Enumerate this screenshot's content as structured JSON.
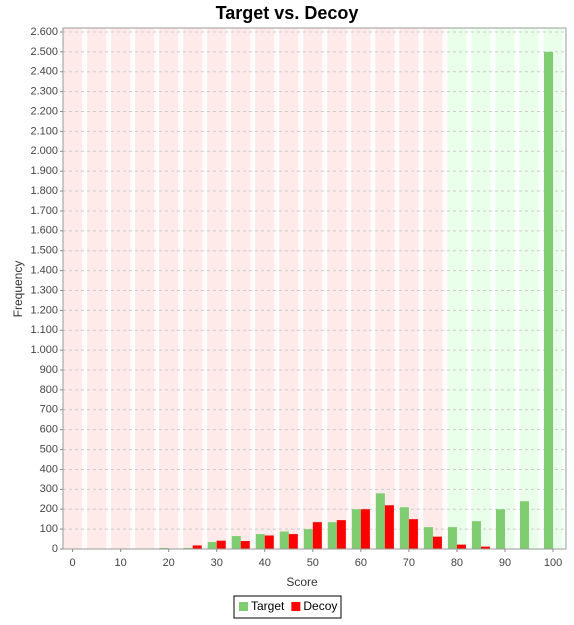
{
  "chart_data": {
    "type": "bar",
    "title": "Target vs. Decoy",
    "x_label": "Score",
    "y_label": "Frequency",
    "x": [
      0,
      5,
      10,
      15,
      20,
      25,
      30,
      35,
      40,
      45,
      50,
      55,
      60,
      65,
      70,
      75,
      80,
      85,
      90,
      95,
      100
    ],
    "series": [
      {
        "name": "Target",
        "color": "#80cc70",
        "values": [
          0,
          0,
          0,
          0,
          5,
          5,
          35,
          65,
          75,
          88,
          100,
          135,
          200,
          280,
          210,
          110,
          110,
          140,
          200,
          240,
          2500
        ]
      },
      {
        "name": "Decoy",
        "color": "#ff0000",
        "values": [
          0,
          0,
          0,
          0,
          0,
          18,
          42,
          40,
          68,
          75,
          135,
          145,
          200,
          220,
          150,
          62,
          22,
          12,
          0,
          0,
          0
        ]
      }
    ],
    "xlim": [
      -2,
      102.7
    ],
    "xticks": [
      0,
      10,
      20,
      30,
      40,
      50,
      60,
      70,
      80,
      90,
      100
    ],
    "ylim": [
      0,
      2620
    ],
    "yticks": [
      0,
      100,
      200,
      300,
      400,
      500,
      600,
      700,
      800,
      900,
      {
        "value": 1000,
        "label": "1.000"
      },
      {
        "value": 1100,
        "label": "1.100"
      },
      {
        "value": 1200,
        "label": "1.200"
      },
      {
        "value": 1300,
        "label": "1.300"
      },
      {
        "value": 1400,
        "label": "1.400"
      },
      {
        "value": 1500,
        "label": "1.500"
      },
      {
        "value": 1600,
        "label": "1.600"
      },
      {
        "value": 1700,
        "label": "1.700"
      },
      {
        "value": 1800,
        "label": "1.800"
      },
      {
        "value": 1900,
        "label": "1.900"
      },
      {
        "value": 2000,
        "label": "2.000"
      },
      {
        "value": 2100,
        "label": "2.100"
      },
      {
        "value": 2200,
        "label": "2.200"
      },
      {
        "value": 2300,
        "label": "2.300"
      },
      {
        "value": 2400,
        "label": "2.400"
      },
      {
        "value": 2500,
        "label": "2.500"
      },
      {
        "value": 2600,
        "label": "2.600"
      }
    ],
    "grid": true,
    "shaded_regions": [
      {
        "from": -2,
        "to": 78,
        "color": "#ffeaea"
      },
      {
        "from": 78,
        "to": 102.7,
        "color": "#eaffea"
      }
    ],
    "legend": "bottom"
  }
}
